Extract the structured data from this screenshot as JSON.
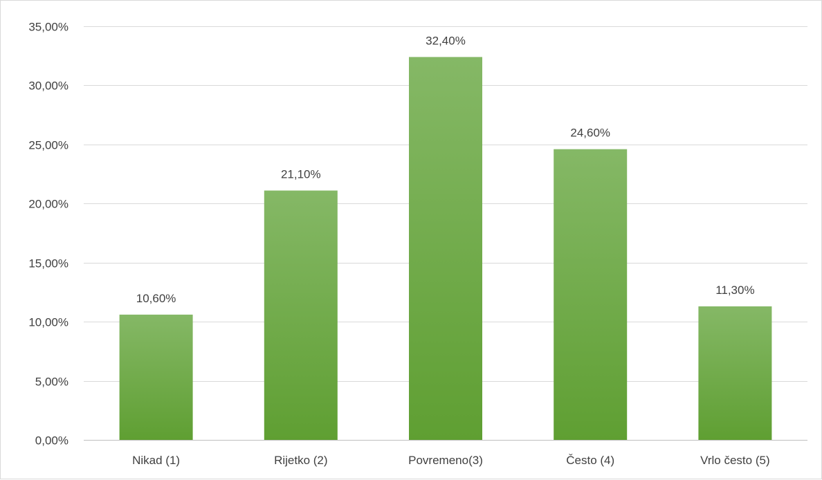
{
  "chart_data": {
    "type": "bar",
    "categories": [
      "Nikad (1)",
      "Rijetko (2)",
      "Povremeno(3)",
      "Često (4)",
      "Vrlo često (5)"
    ],
    "values": [
      10.6,
      21.1,
      32.4,
      24.6,
      11.3
    ],
    "data_labels": [
      "10,60%",
      "21,10%",
      "32,40%",
      "24,60%",
      "11,30%"
    ],
    "y_ticks": [
      0,
      5,
      10,
      15,
      20,
      25,
      30,
      35
    ],
    "y_tick_labels": [
      "0,00%",
      "5,00%",
      "10,00%",
      "15,00%",
      "20,00%",
      "25,00%",
      "30,00%",
      "35,00%"
    ],
    "ylim": [
      0,
      35
    ],
    "grid": true,
    "legend": "none",
    "colors": {
      "bar_top": "#85b866",
      "bar_bottom": "#5f9f32"
    }
  }
}
